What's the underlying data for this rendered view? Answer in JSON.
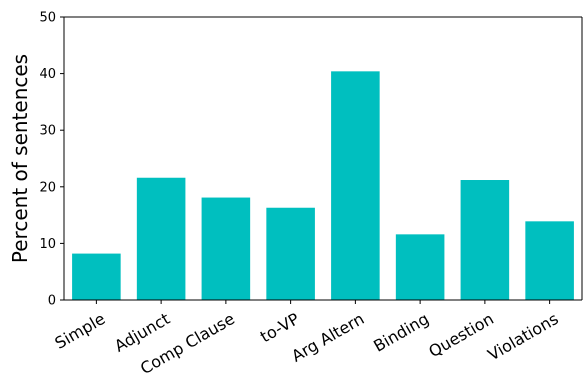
{
  "chart_data": {
    "type": "bar",
    "title": "",
    "xlabel": "",
    "ylabel": "Percent of sentences",
    "categories": [
      "Simple",
      "Adjunct",
      "Comp Clause",
      "to-VP",
      "Arg Altern",
      "Binding",
      "Question",
      "Violations"
    ],
    "values": [
      8.2,
      21.6,
      18.1,
      16.3,
      40.4,
      11.6,
      21.2,
      13.9
    ],
    "ylim": [
      0,
      50
    ],
    "yticks": [
      "0",
      "10",
      "20",
      "30",
      "40",
      "50"
    ],
    "grid": false,
    "bar_color": "#00bfbf"
  }
}
